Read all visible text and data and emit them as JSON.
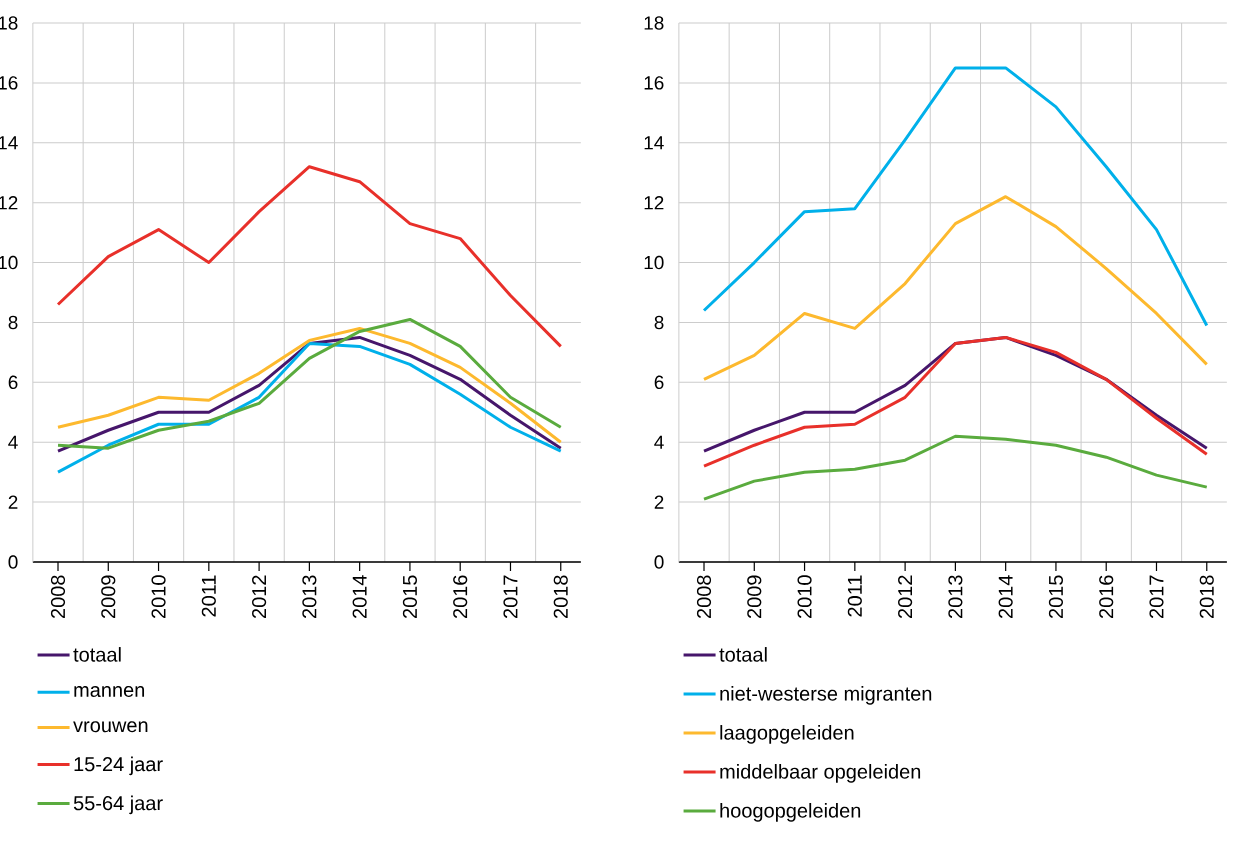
{
  "chart_data": [
    {
      "type": "line",
      "categories": [
        "2008",
        "2009",
        "2010",
        "2011",
        "2012",
        "2013",
        "2014",
        "2015",
        "2016",
        "2017",
        "2018"
      ],
      "ylim": [
        0,
        18
      ],
      "yticks": [
        0,
        2,
        4,
        6,
        8,
        10,
        12,
        14,
        16,
        18
      ],
      "grid": true,
      "legend": "bottom",
      "marker": "none",
      "line_style": "solid",
      "series": [
        {
          "name": "totaal",
          "color": "#46166b",
          "values": [
            3.7,
            4.4,
            5.0,
            5.0,
            5.9,
            7.3,
            7.5,
            6.9,
            6.1,
            4.9,
            3.8
          ]
        },
        {
          "name": "mannen",
          "color": "#00b0ea",
          "values": [
            3.0,
            3.9,
            4.6,
            4.6,
            5.5,
            7.3,
            7.2,
            6.6,
            5.6,
            4.5,
            3.7
          ]
        },
        {
          "name": "vrouwen",
          "color": "#fdb92e",
          "values": [
            4.5,
            4.9,
            5.5,
            5.4,
            6.3,
            7.4,
            7.8,
            7.3,
            6.5,
            5.3,
            4.0
          ]
        },
        {
          "name": "15-24 jaar",
          "color": "#e8302a",
          "values": [
            8.6,
            10.2,
            11.1,
            10.0,
            11.7,
            13.2,
            12.7,
            11.3,
            10.8,
            8.9,
            7.2
          ]
        },
        {
          "name": "55-64 jaar",
          "color": "#5aab3e",
          "values": [
            3.9,
            3.8,
            4.4,
            4.7,
            5.3,
            6.8,
            7.7,
            8.1,
            7.2,
            5.5,
            4.5
          ]
        }
      ]
    },
    {
      "type": "line",
      "categories": [
        "2008",
        "2009",
        "2010",
        "2011",
        "2012",
        "2013",
        "2014",
        "2015",
        "2016",
        "2017",
        "2018"
      ],
      "ylim": [
        0,
        18
      ],
      "yticks": [
        0,
        2,
        4,
        6,
        8,
        10,
        12,
        14,
        16,
        18
      ],
      "grid": true,
      "legend": "bottom",
      "marker": "none",
      "line_style": "solid",
      "series": [
        {
          "name": "totaal",
          "color": "#46166b",
          "values": [
            3.7,
            4.4,
            5.0,
            5.0,
            5.9,
            7.3,
            7.5,
            6.9,
            6.1,
            4.9,
            3.8
          ]
        },
        {
          "name": "niet-westerse migranten",
          "color": "#00b0ea",
          "values": [
            8.4,
            10.0,
            11.7,
            11.8,
            14.1,
            16.5,
            16.5,
            15.2,
            13.2,
            11.1,
            7.9
          ]
        },
        {
          "name": "laagopgeleiden",
          "color": "#fdb92e",
          "values": [
            6.1,
            6.9,
            8.3,
            7.8,
            9.3,
            11.3,
            12.2,
            11.2,
            9.8,
            8.3,
            6.6
          ]
        },
        {
          "name": "middelbaar opgeleiden",
          "color": "#e8302a",
          "values": [
            3.2,
            3.9,
            4.5,
            4.6,
            5.5,
            7.3,
            7.5,
            7.0,
            6.1,
            4.8,
            3.6
          ]
        },
        {
          "name": "hoogopgeleiden",
          "color": "#5aab3e",
          "values": [
            2.1,
            2.7,
            3.0,
            3.1,
            3.4,
            4.2,
            4.1,
            3.9,
            3.5,
            2.9,
            2.5
          ]
        }
      ]
    }
  ]
}
